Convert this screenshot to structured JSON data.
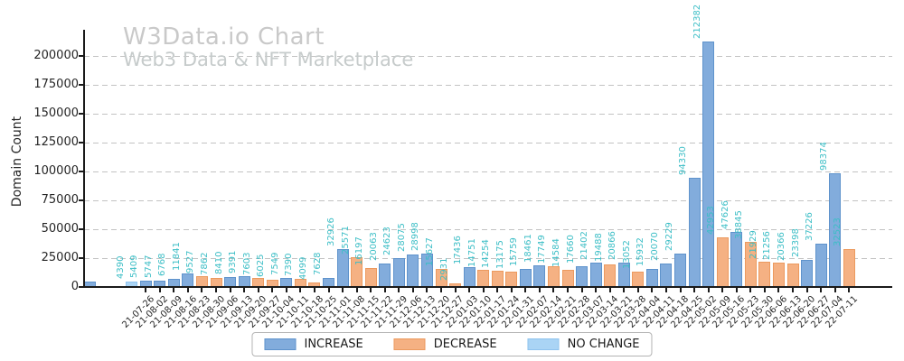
{
  "chart_data": {
    "type": "bar",
    "title": "W3Data.io Chart",
    "subtitle": "Web3 Data & NFT Marketplace",
    "xlabel": "",
    "ylabel": "Domain Count",
    "ylim": [
      0,
      222500
    ],
    "yticks": [
      0,
      25000,
      50000,
      75000,
      100000,
      125000,
      150000,
      175000,
      200000
    ],
    "grid": "horizontal-dashed",
    "x_tick_rotation": 45,
    "value_label_rotation": 90,
    "colors": {
      "increase_fill": "#82acdc",
      "increase_edge": "#5f93cc",
      "decrease_fill": "#f5b183",
      "decrease_edge": "#ec9a5f",
      "nochange_fill": "#aad4f5",
      "nochange_edge": "#8fc3ee",
      "value_label": "#3cbec6",
      "grid": "#c3c3c3",
      "axis": "#1a1a1a",
      "title_gray": "#c9c9c9"
    },
    "legend": {
      "position": "bottom-center",
      "entries": [
        {
          "label": "INCREASE",
          "type": "increase"
        },
        {
          "label": "DECREASE",
          "type": "decrease"
        },
        {
          "label": "NO CHANGE",
          "type": "nochange"
        }
      ]
    },
    "pre_bars": [
      {
        "slot": 0,
        "date": "",
        "value": 5000,
        "label": "",
        "type": "increase",
        "estimated": true
      },
      {
        "slot": 3,
        "date": "",
        "value": 4390,
        "label": "4390",
        "type": "nochange"
      }
    ],
    "bars": [
      {
        "date": "21-07-26",
        "value": 5409,
        "label": "5409",
        "type": "increase"
      },
      {
        "date": "21-08-02",
        "value": 5747,
        "label": "5747",
        "type": "increase"
      },
      {
        "date": "21-08-09",
        "value": 6768,
        "label": "6768",
        "type": "increase"
      },
      {
        "date": "21-08-16",
        "value": 11841,
        "label": "11841",
        "type": "increase"
      },
      {
        "date": "21-08-23",
        "value": 9527,
        "label": "9527",
        "type": "decrease"
      },
      {
        "date": "21-08-30",
        "value": 7862,
        "label": "7862",
        "type": "decrease"
      },
      {
        "date": "21-09-06",
        "value": 8410,
        "label": "8410",
        "type": "increase"
      },
      {
        "date": "21-09-13",
        "value": 9391,
        "label": "9391",
        "type": "increase"
      },
      {
        "date": "21-09-20",
        "value": 7603,
        "label": "7603",
        "type": "decrease"
      },
      {
        "date": "21-09-27",
        "value": 6025,
        "label": "6025",
        "type": "decrease"
      },
      {
        "date": "21-10-04",
        "value": 7549,
        "label": "7549",
        "type": "increase"
      },
      {
        "date": "21-10-11",
        "value": 7390,
        "label": "7390",
        "type": "decrease"
      },
      {
        "date": "21-10-18",
        "value": 4099,
        "label": "4099",
        "type": "decrease"
      },
      {
        "date": "21-10-25",
        "value": 7628,
        "label": "7628",
        "type": "increase"
      },
      {
        "date": "21-11-01",
        "value": 32926,
        "label": "32926",
        "type": "increase"
      },
      {
        "date": "21-11-08",
        "value": 25571,
        "label": "25571",
        "type": "decrease"
      },
      {
        "date": "21-11-15",
        "value": 16197,
        "label": "16197",
        "type": "decrease"
      },
      {
        "date": "21-11-22",
        "value": 20063,
        "label": "20063",
        "type": "increase"
      },
      {
        "date": "21-11-29",
        "value": 24623,
        "label": "24623",
        "type": "increase"
      },
      {
        "date": "21-12-06",
        "value": 28075,
        "label": "28075",
        "type": "increase"
      },
      {
        "date": "21-12-13",
        "value": 28998,
        "label": "28998",
        "type": "increase"
      },
      {
        "date": "21-12-20",
        "value": 15627,
        "label": "15627",
        "type": "decrease"
      },
      {
        "date": "21-12-27",
        "value": 2931,
        "label": "2931",
        "type": "decrease"
      },
      {
        "date": "22-01-03",
        "value": 17436,
        "label": "17436",
        "type": "increase"
      },
      {
        "date": "22-01-10",
        "value": 14751,
        "label": "14751",
        "type": "decrease"
      },
      {
        "date": "22-01-17",
        "value": 14254,
        "label": "14254",
        "type": "decrease"
      },
      {
        "date": "22-01-24",
        "value": 13175,
        "label": "13175",
        "type": "decrease"
      },
      {
        "date": "22-01-31",
        "value": 15759,
        "label": "15759",
        "type": "increase"
      },
      {
        "date": "22-02-07",
        "value": 18461,
        "label": "18461",
        "type": "increase"
      },
      {
        "date": "22-02-14",
        "value": 17749,
        "label": "17749",
        "type": "decrease"
      },
      {
        "date": "22-02-21",
        "value": 14584,
        "label": "14584",
        "type": "decrease"
      },
      {
        "date": "22-02-28",
        "value": 17660,
        "label": "17660",
        "type": "increase"
      },
      {
        "date": "22-03-07",
        "value": 21402,
        "label": "21402",
        "type": "increase"
      },
      {
        "date": "22-03-14",
        "value": 19488,
        "label": "19488",
        "type": "decrease"
      },
      {
        "date": "22-03-21",
        "value": 20866,
        "label": "20866",
        "type": "increase"
      },
      {
        "date": "22-03-28",
        "value": 13052,
        "label": "13052",
        "type": "decrease"
      },
      {
        "date": "22-04-04",
        "value": 15932,
        "label": "15932",
        "type": "increase"
      },
      {
        "date": "22-04-11",
        "value": 20070,
        "label": "20070",
        "type": "increase"
      },
      {
        "date": "22-04-18",
        "value": 29229,
        "label": "29229",
        "type": "increase"
      },
      {
        "date": "22-04-25",
        "value": 94330,
        "label": "94330",
        "type": "increase"
      },
      {
        "date": "22-05-02",
        "value": 212382,
        "label": "212382",
        "type": "increase"
      },
      {
        "date": "22-05-09",
        "value": 42953,
        "label": "42953",
        "type": "decrease"
      },
      {
        "date": "22-05-16",
        "value": 47626,
        "label": "47626",
        "type": "increase"
      },
      {
        "date": "22-05-23",
        "value": 38845,
        "label": "38845",
        "type": "decrease"
      },
      {
        "date": "22-05-30",
        "value": 21929,
        "label": "21929",
        "type": "decrease"
      },
      {
        "date": "22-06-06",
        "value": 21256,
        "label": "21256",
        "type": "decrease"
      },
      {
        "date": "22-06-13",
        "value": 20366,
        "label": "20366",
        "type": "decrease"
      },
      {
        "date": "22-06-20",
        "value": 23398,
        "label": "23398",
        "type": "increase"
      },
      {
        "date": "22-06-27",
        "value": 37226,
        "label": "37226",
        "type": "increase"
      },
      {
        "date": "22-07-04",
        "value": 98374,
        "label": "98374",
        "type": "increase"
      },
      {
        "date": "22-07-11",
        "value": 32523,
        "label": "32523",
        "type": "decrease"
      }
    ]
  }
}
